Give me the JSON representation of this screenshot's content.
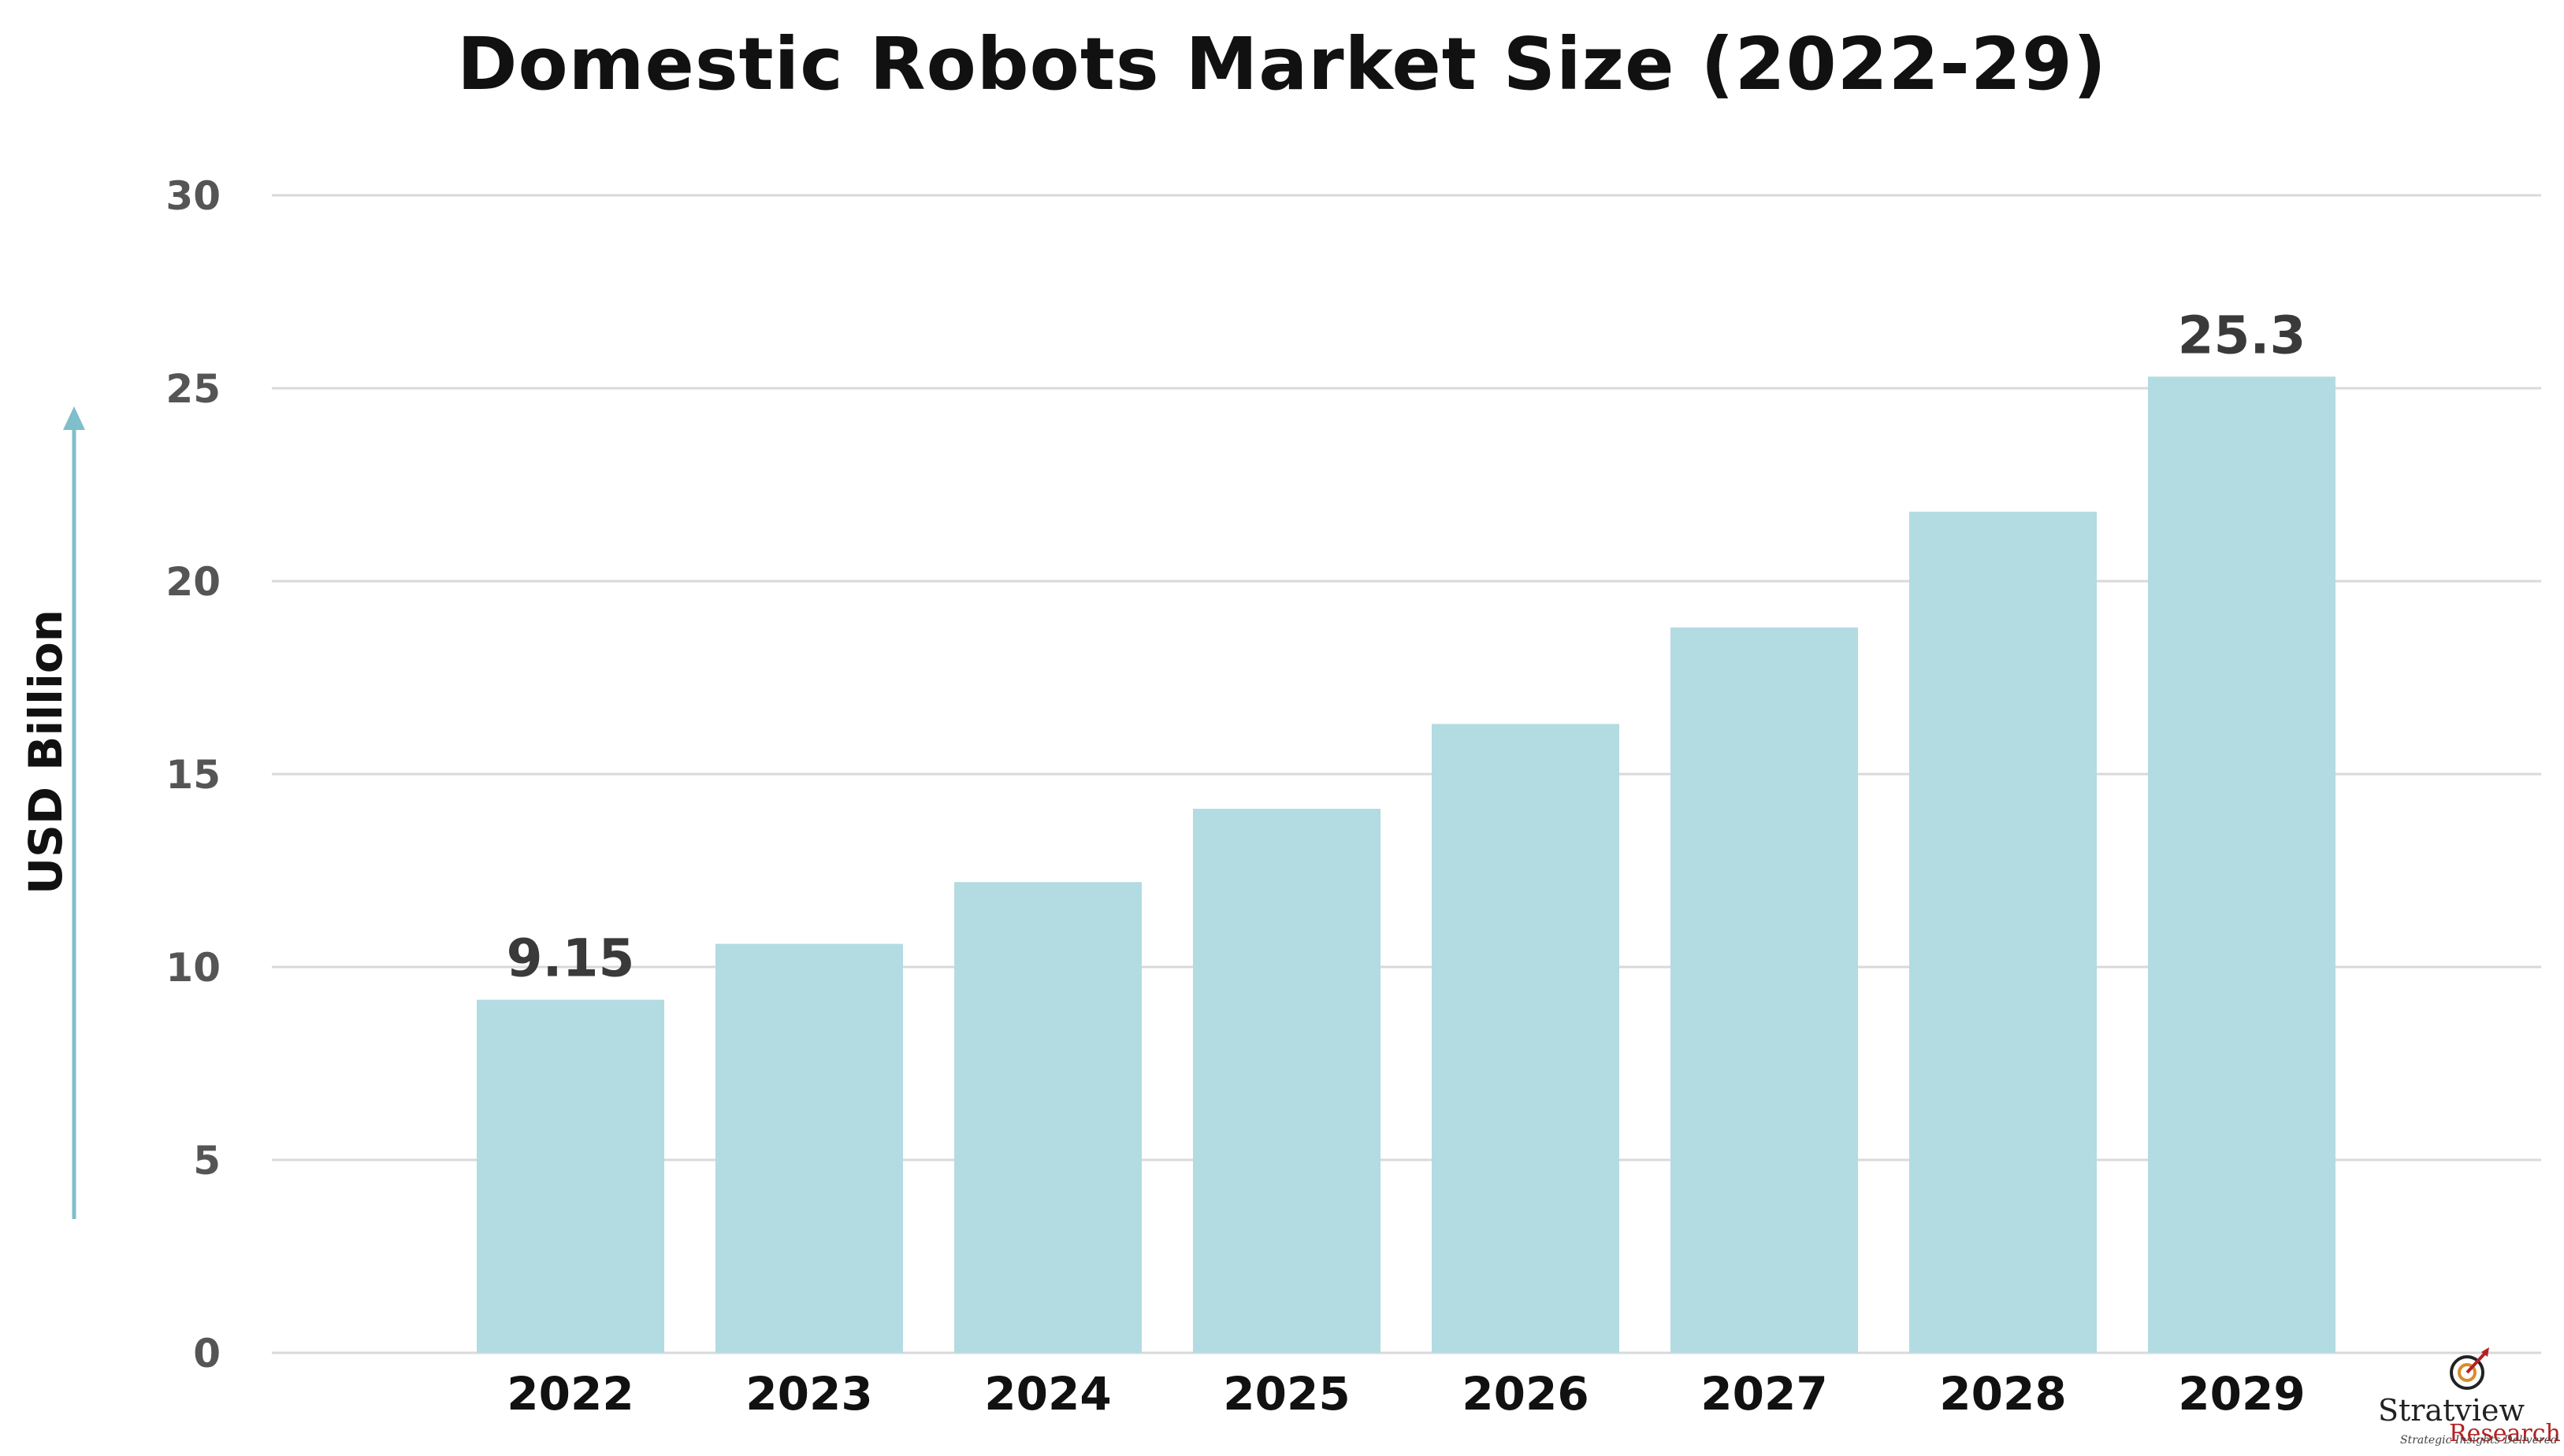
{
  "chart_data": {
    "type": "bar",
    "title": "Domestic Robots Market Size (2022-29)",
    "xlabel": "",
    "ylabel": "USD Billion",
    "categories": [
      "2022",
      "2023",
      "2024",
      "2025",
      "2026",
      "2027",
      "2028",
      "2029"
    ],
    "values": [
      9.15,
      10.6,
      12.2,
      14.1,
      16.3,
      18.8,
      21.8,
      25.3
    ],
    "data_labels": [
      "9.15",
      "",
      "",
      "",
      "",
      "",
      "",
      "25.3"
    ],
    "ylim": [
      0,
      30
    ],
    "yticks": [
      0,
      5,
      10,
      15,
      20,
      25,
      30
    ],
    "grid": true,
    "legend": "none",
    "colors": {
      "bar": "#b3dbe2",
      "grid": "#d9d9d9",
      "axis_arrow": "#7fbfcb",
      "title": "#111111"
    }
  },
  "logo": {
    "name": "Stratview",
    "name2": "Research",
    "tagline": "Strategic Insights Delivered",
    "icon": "target-arrow-icon"
  }
}
